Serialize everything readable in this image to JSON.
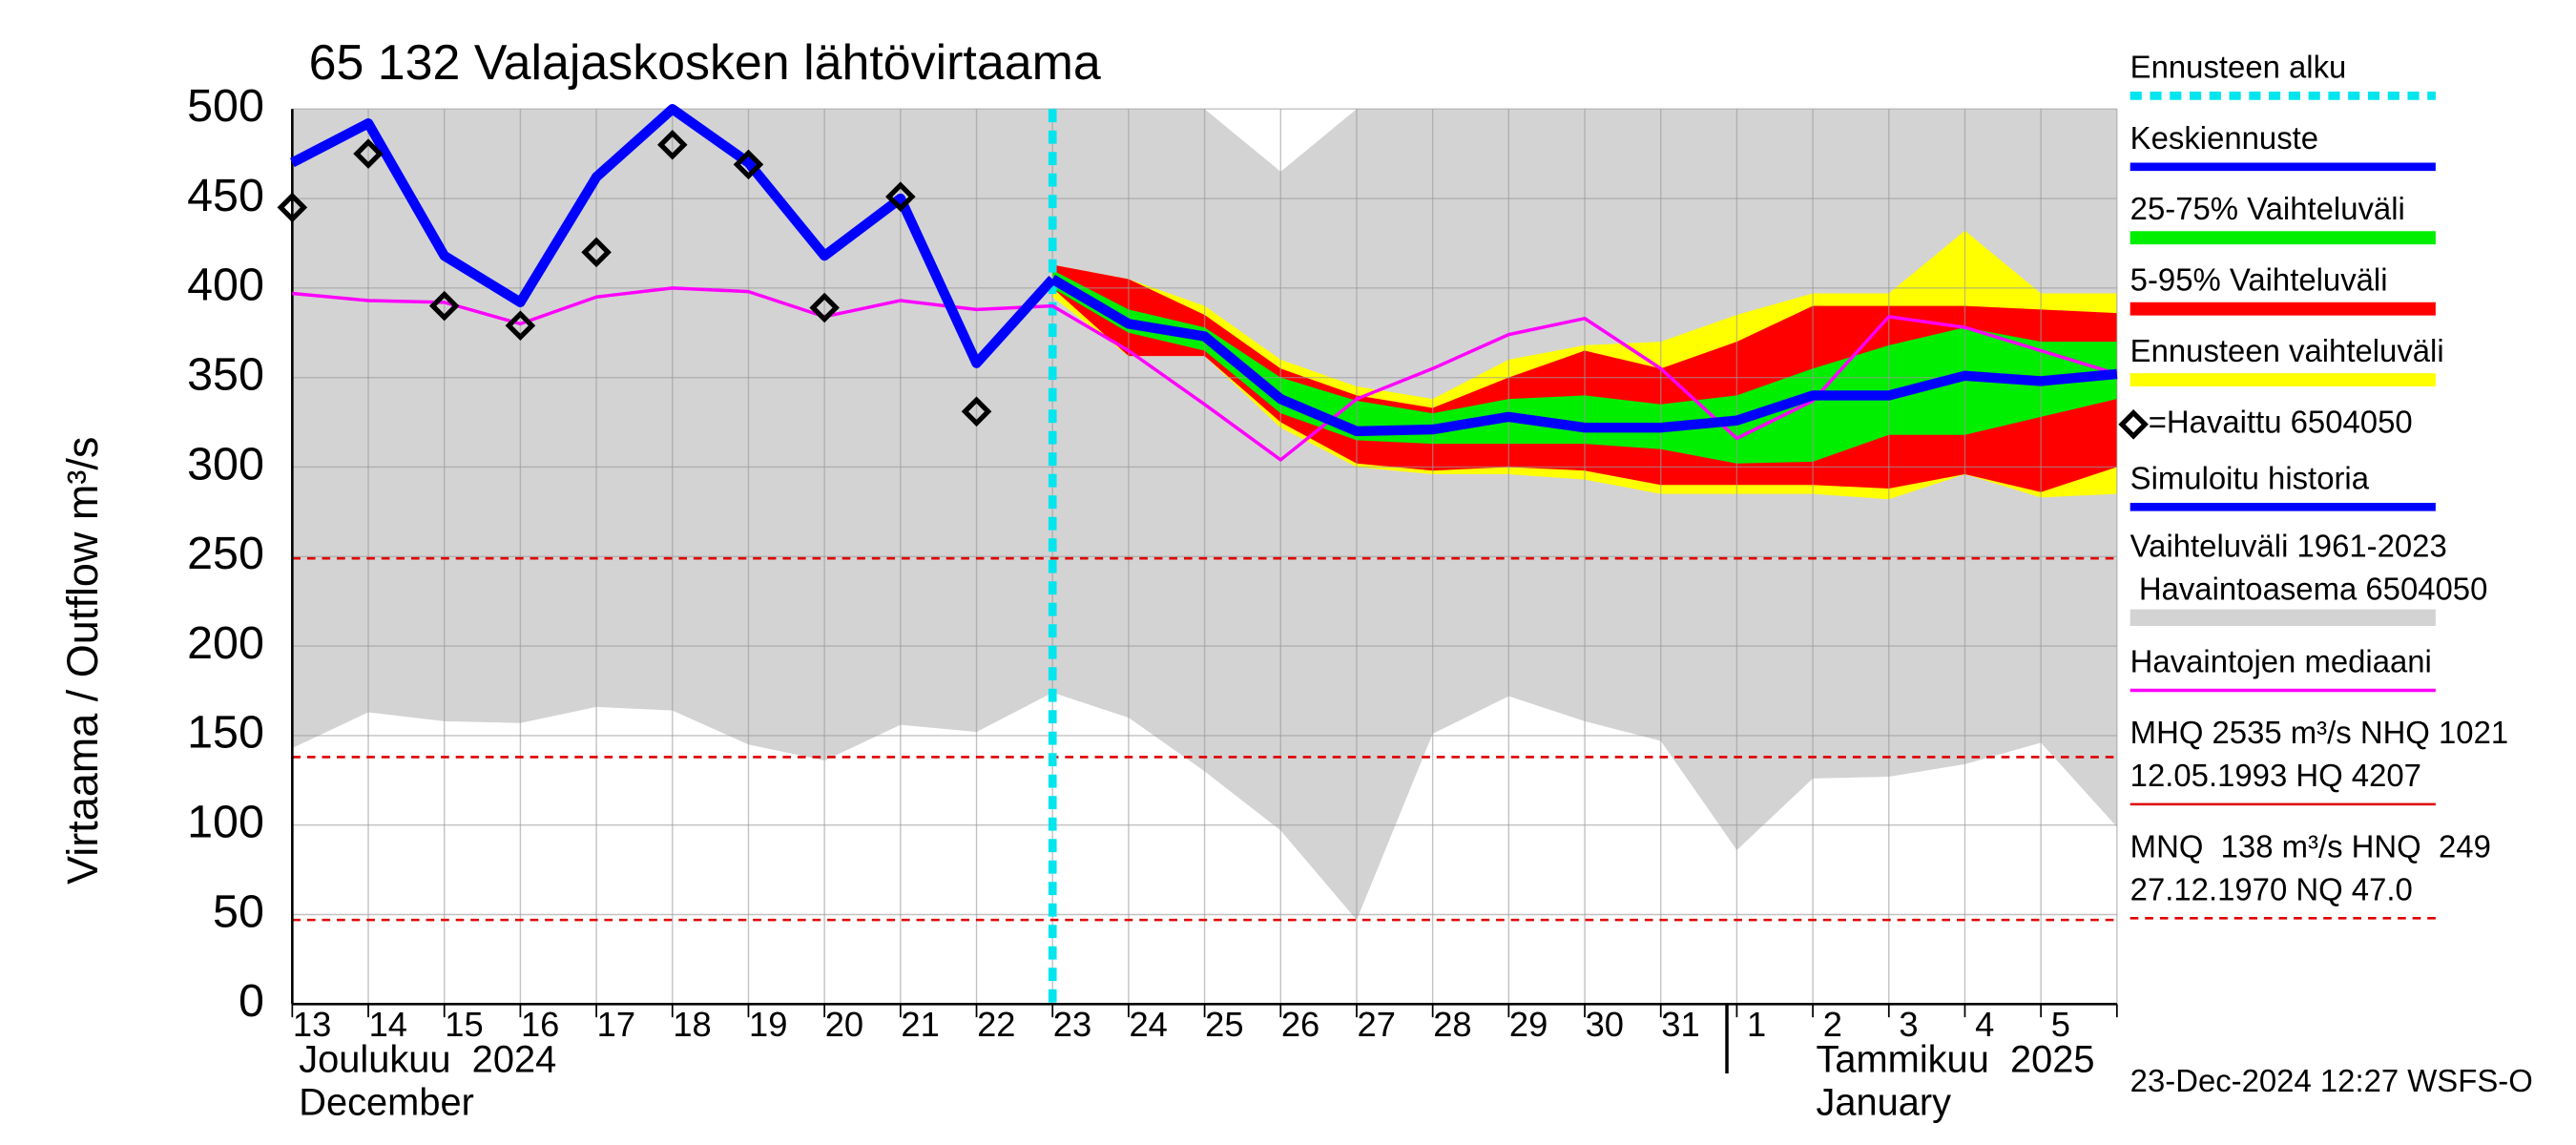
{
  "chart_data": {
    "type": "line",
    "title": "65 132 Valajaskosken lähtövirtaama",
    "y_label": "Virtaama / Outflow    m³/s",
    "categories": [
      "13",
      "14",
      "15",
      "16",
      "17",
      "18",
      "19",
      "20",
      "21",
      "22",
      "23",
      "24",
      "25",
      "26",
      "27",
      "28",
      "29",
      "30",
      "31",
      "1",
      "2",
      "3",
      "4",
      "5",
      null
    ],
    "month_labels": [
      {
        "fi": "Joulukuu  2024",
        "en": "December"
      },
      {
        "fi": "Tammikuu  2025",
        "en": "January"
      }
    ],
    "ylim": [
      0,
      500
    ],
    "yticks": [
      0,
      50,
      100,
      150,
      200,
      250,
      300,
      350,
      400,
      450,
      500
    ],
    "grid": true,
    "forecast_start": {
      "name": "Ennusteen alku",
      "x": "23",
      "color": "#00e5ee"
    },
    "bands": [
      {
        "name": "Vaihteluväli 1961-2023",
        "name2": " Havaintoasema 6504050",
        "color": "#d3d3d3",
        "upper": [
          500,
          500,
          500,
          500,
          500,
          500,
          500,
          500,
          500,
          500,
          500,
          500,
          500,
          465,
          500,
          500,
          500,
          500,
          500,
          500,
          500,
          500,
          500,
          500,
          500
        ],
        "lower": [
          143,
          163,
          158,
          157,
          166,
          164,
          145,
          136,
          156,
          152,
          174,
          160,
          130,
          97,
          47,
          151,
          172,
          158,
          147,
          86,
          126,
          127,
          134,
          146,
          99
        ]
      },
      {
        "name": "Ennusteen vaihteluväli",
        "color": "#ffff00",
        "upper": [
          null,
          null,
          null,
          null,
          null,
          null,
          null,
          null,
          null,
          null,
          413,
          405,
          390,
          360,
          345,
          338,
          360,
          368,
          370,
          385,
          397,
          397,
          432,
          397,
          397
        ],
        "lower": [
          null,
          null,
          null,
          null,
          null,
          null,
          null,
          null,
          null,
          null,
          395,
          362,
          362,
          322,
          300,
          296,
          296,
          293,
          285,
          285,
          285,
          282,
          296,
          283,
          285
        ]
      },
      {
        "name": "5-95% Vaihteluväli",
        "color": "#ff0000",
        "upper": [
          null,
          null,
          null,
          null,
          null,
          null,
          null,
          null,
          null,
          null,
          413,
          405,
          385,
          355,
          340,
          333,
          350,
          365,
          355,
          370,
          390,
          390,
          390,
          388,
          386
        ],
        "lower": [
          null,
          null,
          null,
          null,
          null,
          null,
          null,
          null,
          null,
          null,
          400,
          362,
          362,
          325,
          302,
          298,
          300,
          298,
          290,
          290,
          290,
          288,
          296,
          286,
          300
        ]
      },
      {
        "name": "25-75% Vaihteluväli",
        "color": "#00ee00",
        "upper": [
          null,
          null,
          null,
          null,
          null,
          null,
          null,
          null,
          null,
          null,
          410,
          388,
          378,
          350,
          337,
          330,
          338,
          340,
          335,
          340,
          355,
          368,
          378,
          370,
          370
        ],
        "lower": [
          null,
          null,
          null,
          null,
          null,
          null,
          null,
          null,
          null,
          null,
          400,
          375,
          365,
          330,
          315,
          313,
          313,
          313,
          310,
          302,
          303,
          318,
          318,
          328,
          338
        ]
      }
    ],
    "series": [
      {
        "name": "Havaintojen mediaani",
        "color": "#ff00ff",
        "width": 2,
        "values": [
          397,
          393,
          392,
          380,
          395,
          400,
          398,
          384,
          393,
          388,
          390,
          365,
          335,
          304,
          338,
          355,
          374,
          383,
          355,
          316,
          337,
          384,
          378,
          365,
          352
        ]
      },
      {
        "name": "Simuloitu historia",
        "color": "#0000ff",
        "width": 6,
        "values": [
          470,
          492,
          418,
          392,
          462,
          500,
          470,
          418,
          450,
          358,
          405,
          null,
          null,
          null,
          null,
          null,
          null,
          null,
          null,
          null,
          null,
          null,
          null,
          null,
          null
        ]
      },
      {
        "name": "Keskiennuste",
        "color": "#0000ff",
        "width": 6,
        "values": [
          null,
          null,
          null,
          null,
          null,
          null,
          null,
          null,
          null,
          null,
          405,
          380,
          373,
          338,
          320,
          321,
          328,
          322,
          322,
          326,
          340,
          340,
          351,
          348,
          352
        ]
      },
      {
        "name": "=Havaittu 6504050",
        "color": "#000000",
        "marker": "diamond",
        "values": [
          445,
          475,
          390,
          379,
          420,
          480,
          469,
          389,
          451,
          331,
          null,
          null,
          null,
          null,
          null,
          null,
          null,
          null,
          null,
          null,
          null,
          null,
          null,
          null,
          null
        ]
      }
    ],
    "hlines": {
      "color": "#e00000",
      "values": [
        249,
        138,
        47
      ]
    },
    "notes": [
      {
        "lines": [
          "MHQ 2535 m³/s NHQ 1021",
          "12.05.1993 HQ 4207"
        ],
        "color": "#e00000",
        "dashed": false
      },
      {
        "lines": [
          "MNQ  138 m³/s HNQ  249",
          "27.12.1970 NQ 47.0"
        ],
        "color": "#e00000",
        "dashed": true
      }
    ],
    "footer": "23-Dec-2024 12:27 WSFS-O"
  }
}
